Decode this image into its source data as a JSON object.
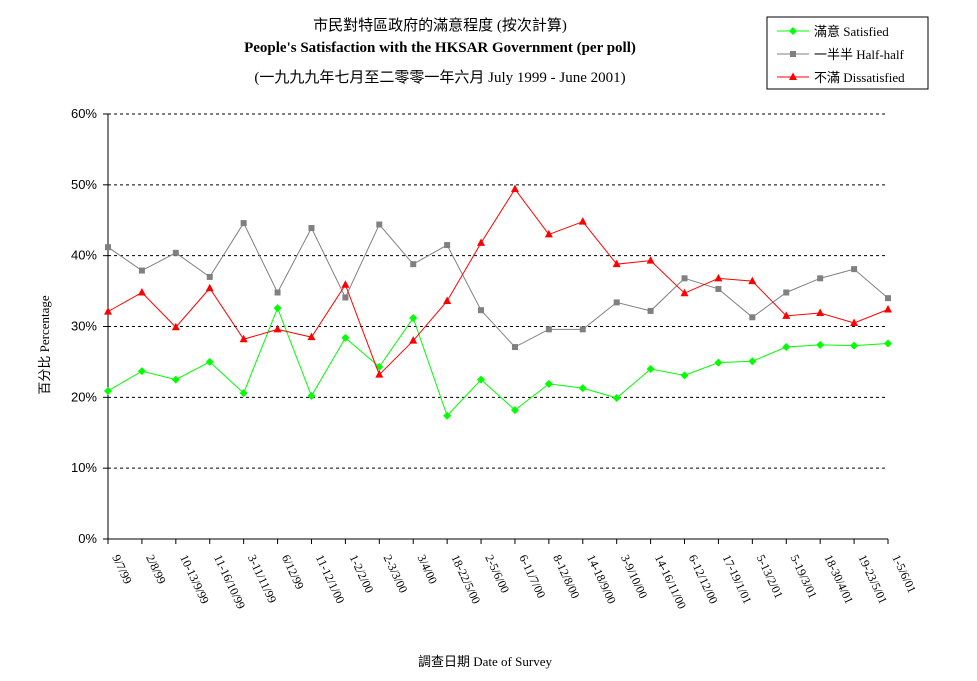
{
  "chart_data": {
    "type": "line",
    "title": "市民對特區政府的滿意程度 (按次計算)",
    "subtitle": "People's Satisfaction with the HKSAR Government (per poll)",
    "subtitle2": "(一九九九年七月至二零零一年六月 July 1999 - June 2001)",
    "xlabel": "調查日期 Date of Survey",
    "ylabel": "百分比 Percentage",
    "ylim": [
      0,
      60
    ],
    "yticks": [
      "0%",
      "10%",
      "20%",
      "30%",
      "40%",
      "50%",
      "60%"
    ],
    "grid": "horizontal dotted",
    "legend_position": "top-right",
    "categories": [
      "9/7/99",
      "2/8/99",
      "10-13/9/99",
      "11-16/10/99",
      "3-11/11/99",
      "6/12/99",
      "11-12/1/00",
      "1-2/2/00",
      "2-3/3/00",
      "3/4/00",
      "18-22/5/00",
      "2-5/6/00",
      "6-11/7/00",
      "8-12/8/00",
      "14-18/9/00",
      "3-9/10/00",
      "14-16/11/00",
      "6-12/12/00",
      "17-19/1/01",
      "5-13/2/01",
      "5-19/3/01",
      "18-30/4/01",
      "19-23/5/01",
      "1-5/6/01"
    ],
    "series": [
      {
        "name": "滿意 Satisfied",
        "color": "#00ff00",
        "marker": "diamond",
        "values": [
          20.9,
          23.7,
          22.5,
          25.0,
          20.6,
          32.6,
          20.2,
          28.4,
          24.3,
          31.2,
          17.4,
          22.5,
          18.2,
          21.9,
          21.3,
          19.9,
          24.0,
          23.1,
          24.9,
          25.1,
          27.1,
          27.4,
          27.3,
          27.6
        ]
      },
      {
        "name": "一半半 Half-half",
        "color": "#808080",
        "marker": "square",
        "values": [
          41.2,
          37.9,
          40.4,
          37.0,
          44.6,
          34.8,
          43.9,
          34.1,
          44.4,
          38.8,
          41.5,
          32.3,
          27.1,
          29.6,
          29.6,
          33.4,
          32.2,
          36.8,
          35.3,
          31.3,
          34.8,
          36.8,
          38.1,
          34.0
        ]
      },
      {
        "name": "不滿 Dissatisfied",
        "color": "#ff0000",
        "marker": "triangle",
        "values": [
          32.1,
          34.8,
          29.9,
          35.4,
          28.2,
          29.6,
          28.5,
          35.9,
          23.2,
          28.0,
          33.6,
          41.8,
          49.4,
          43.0,
          44.8,
          38.8,
          39.3,
          34.7,
          36.8,
          36.4,
          31.5,
          31.9,
          30.5,
          32.4
        ]
      }
    ]
  }
}
